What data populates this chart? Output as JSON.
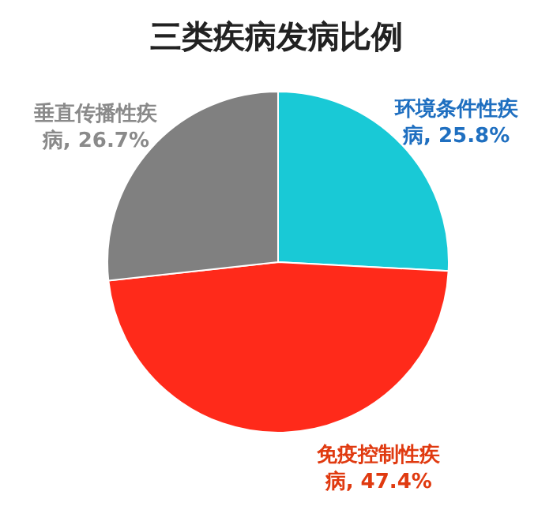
{
  "chart_data": {
    "type": "pie",
    "title": "三类疾病发病比例",
    "categories": [
      "环境条件性疾病",
      "免疫控制性疾病",
      "垂直传播性疾病"
    ],
    "values": [
      25.8,
      47.4,
      26.7
    ],
    "value_labels": [
      "25.8%",
      "47.4%",
      "26.7%"
    ],
    "colors": [
      "#19c9d6",
      "#ff2a1a",
      "#808080"
    ]
  }
}
